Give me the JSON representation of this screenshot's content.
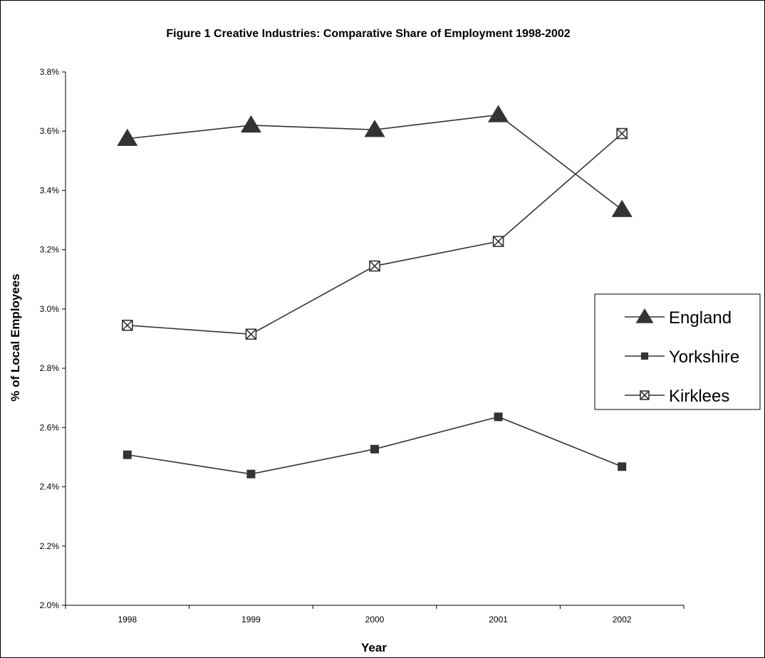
{
  "chart_data": {
    "type": "line",
    "title": "Figure 1 Creative Industries: Comparative Share of Employment 1998-2002",
    "xlabel": "Year",
    "ylabel": "% of Local Employees",
    "categories": [
      "1998",
      "1999",
      "2000",
      "2001",
      "2002"
    ],
    "ylim": [
      2.0,
      3.8
    ],
    "yticks": [
      "2.0%",
      "2.2%",
      "2.4%",
      "2.6%",
      "2.8%",
      "3.0%",
      "3.2%",
      "3.4%",
      "3.6%",
      "3.8%"
    ],
    "grid": false,
    "legend": "right",
    "series": [
      {
        "name": "England",
        "marker": "triangle",
        "values": [
          3.575,
          3.62,
          3.605,
          3.655,
          3.335
        ]
      },
      {
        "name": "Yorkshire",
        "marker": "square",
        "values": [
          2.508,
          2.443,
          2.527,
          2.636,
          2.468
        ]
      },
      {
        "name": "Kirklees",
        "marker": "x-square",
        "values": [
          2.945,
          2.915,
          3.145,
          3.228,
          3.592
        ]
      }
    ],
    "colors": {
      "line": "#333333",
      "marker": "#333333",
      "text": "#000000",
      "border": "#000000"
    }
  }
}
